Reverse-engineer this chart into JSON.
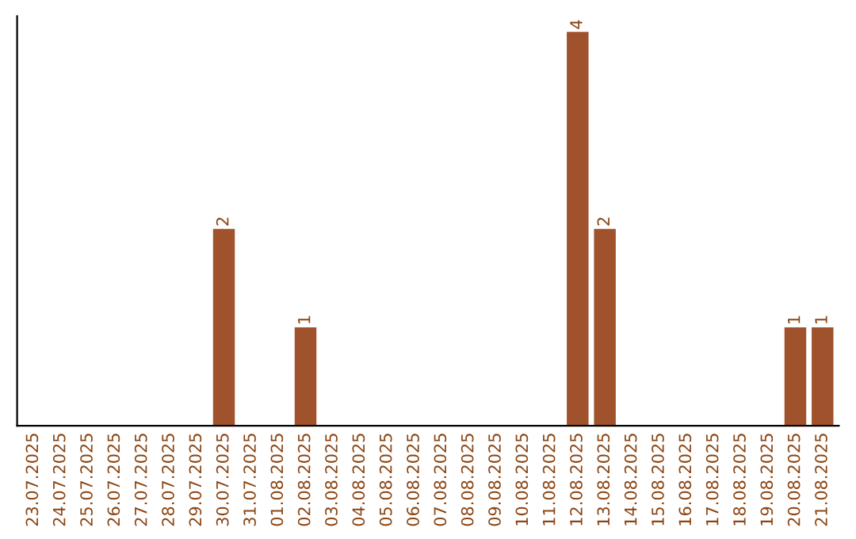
{
  "chart_data": {
    "type": "bar",
    "categories": [
      "23.07.2025",
      "24.07.2025",
      "25.07.2025",
      "26.07.2025",
      "27.07.2025",
      "28.07.2025",
      "29.07.2025",
      "30.07.2025",
      "31.07.2025",
      "01.08.2025",
      "02.08.2025",
      "03.08.2025",
      "04.08.2025",
      "05.08.2025",
      "06.08.2025",
      "07.08.2025",
      "08.08.2025",
      "09.08.2025",
      "10.08.2025",
      "11.08.2025",
      "12.08.2025",
      "13.08.2025",
      "14.08.2025",
      "15.08.2025",
      "16.08.2025",
      "17.08.2025",
      "18.08.2025",
      "19.08.2025",
      "20.08.2025",
      "21.08.2025"
    ],
    "values": [
      0,
      0,
      0,
      0,
      0,
      0,
      0,
      2,
      0,
      0,
      1,
      0,
      0,
      0,
      0,
      0,
      0,
      0,
      0,
      0,
      4,
      2,
      0,
      0,
      0,
      0,
      0,
      0,
      1,
      1
    ],
    "value_labels": [
      null,
      null,
      null,
      null,
      null,
      null,
      null,
      "2",
      null,
      null,
      "1",
      null,
      null,
      null,
      null,
      null,
      null,
      null,
      null,
      null,
      "4",
      "2",
      null,
      null,
      null,
      null,
      null,
      null,
      "1",
      "1"
    ],
    "color": "#a0522d",
    "tick_labels": "x",
    "grid": false,
    "legend": false
  }
}
